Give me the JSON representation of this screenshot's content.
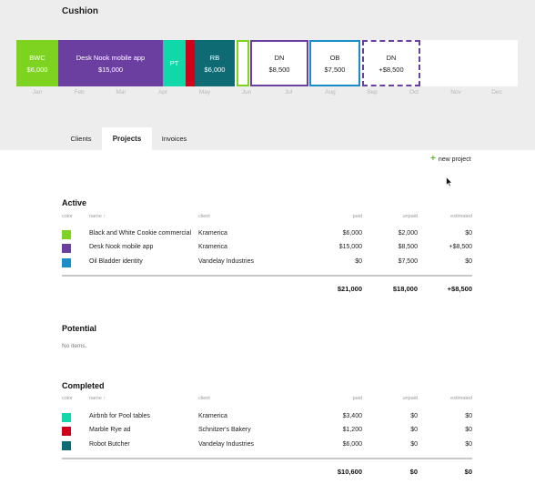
{
  "app": {
    "title": "Cushion"
  },
  "colors": {
    "green": "#7ed321",
    "purple": "#6b3fa0",
    "teal": "#10d8a8",
    "red": "#d0021b",
    "darkteal": "#0e6b73",
    "blue": "#1a8dc8"
  },
  "timeline": {
    "blocks": [
      {
        "name": "BWC",
        "amount": "$6,000",
        "style": "solid",
        "color": "#7ed321"
      },
      {
        "name": "Desk Nook mobile app",
        "amount": "$15,000",
        "style": "solid",
        "color": "#6b3fa0"
      },
      {
        "name": "PT",
        "amount": "",
        "style": "solid",
        "color": "#10d8a8"
      },
      {
        "name": "",
        "amount": "",
        "style": "solid",
        "color": "#d0021b"
      },
      {
        "name": "RB",
        "amount": "$6,000",
        "style": "solid",
        "color": "#0e6b73"
      },
      {
        "name": "",
        "amount": "",
        "style": "outline",
        "color": "#7ed321"
      },
      {
        "name": "DN",
        "amount": "$8,500",
        "style": "outline",
        "color": "#6b3fa0"
      },
      {
        "name": "OB",
        "amount": "$7,500",
        "style": "outline",
        "color": "#1a8dc8"
      },
      {
        "name": "DN",
        "amount": "+$8,500",
        "style": "dashed",
        "color": "#6b3fa0"
      }
    ],
    "months": [
      "Jan",
      "Feb",
      "Mar",
      "Apr",
      "May",
      "Jun",
      "Jul",
      "Aug",
      "Sep",
      "Oct",
      "Nov",
      "Dec"
    ]
  },
  "tabs": [
    {
      "label": "Clients",
      "active": false
    },
    {
      "label": "Projects",
      "active": true
    },
    {
      "label": "Invoices",
      "active": false
    }
  ],
  "actions": {
    "new_project": "new project"
  },
  "columns": {
    "color": "color",
    "name": "name ↑",
    "client": "client",
    "paid": "paid",
    "unpaid": "unpaid",
    "estimated": "estimated"
  },
  "active": {
    "title": "Active",
    "rows": [
      {
        "color": "#7ed321",
        "name": "Black and White Cookie commercial",
        "client": "Kramerica",
        "paid": "$6,000",
        "unpaid": "$2,000",
        "estimated": "$0"
      },
      {
        "color": "#6b3fa0",
        "name": "Desk Nook mobile app",
        "client": "Kramerica",
        "paid": "$15,000",
        "unpaid": "$8,500",
        "estimated": "+$8,500"
      },
      {
        "color": "#1a8dc8",
        "name": "Oil Bladder identity",
        "client": "Vandelay Industries",
        "paid": "$0",
        "unpaid": "$7,500",
        "estimated": "$0"
      }
    ],
    "totals": {
      "paid": "$21,000",
      "unpaid": "$18,000",
      "estimated": "+$8,500"
    }
  },
  "potential": {
    "title": "Potential",
    "empty": "No items."
  },
  "completed": {
    "title": "Completed",
    "rows": [
      {
        "color": "#10d8a8",
        "name": "Airbnb for Pool tables",
        "client": "Kramerica",
        "paid": "$3,400",
        "unpaid": "$0",
        "estimated": "$0"
      },
      {
        "color": "#d0021b",
        "name": "Marble Rye ad",
        "client": "Schnitzer's Bakery",
        "paid": "$1,200",
        "unpaid": "$0",
        "estimated": "$0"
      },
      {
        "color": "#0e6b73",
        "name": "Robot Butcher",
        "client": "Vandelay Industries",
        "paid": "$6,000",
        "unpaid": "$0",
        "estimated": "$0"
      }
    ],
    "totals": {
      "paid": "$10,600",
      "unpaid": "$0",
      "estimated": "$0"
    }
  }
}
